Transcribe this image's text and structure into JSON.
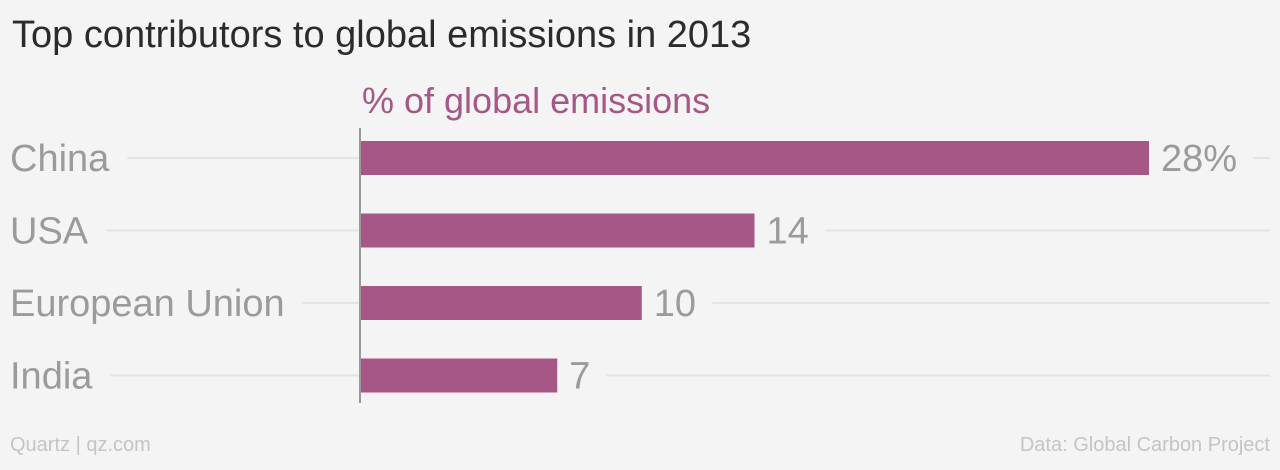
{
  "title": "Top contributors to global emissions in 2013",
  "footer": {
    "source_left": "Quartz | qz.com",
    "source_right": "Data: Global Carbon Project"
  },
  "colors": {
    "bar": "#a65786",
    "gridline": "#e3e3e3",
    "axis": "#9a9a9a",
    "category_label": "#9b9b9b",
    "value_label": "#9b9b9b"
  },
  "chart_data": {
    "type": "bar",
    "orientation": "horizontal",
    "subtitle": "% of global emissions",
    "categories": [
      "China",
      "USA",
      "European Union",
      "India"
    ],
    "values": [
      28,
      14,
      10,
      7
    ],
    "value_labels": [
      "28%",
      "14",
      "10",
      "7"
    ],
    "xlim": [
      0,
      28
    ],
    "grid": true,
    "legend": "none"
  }
}
